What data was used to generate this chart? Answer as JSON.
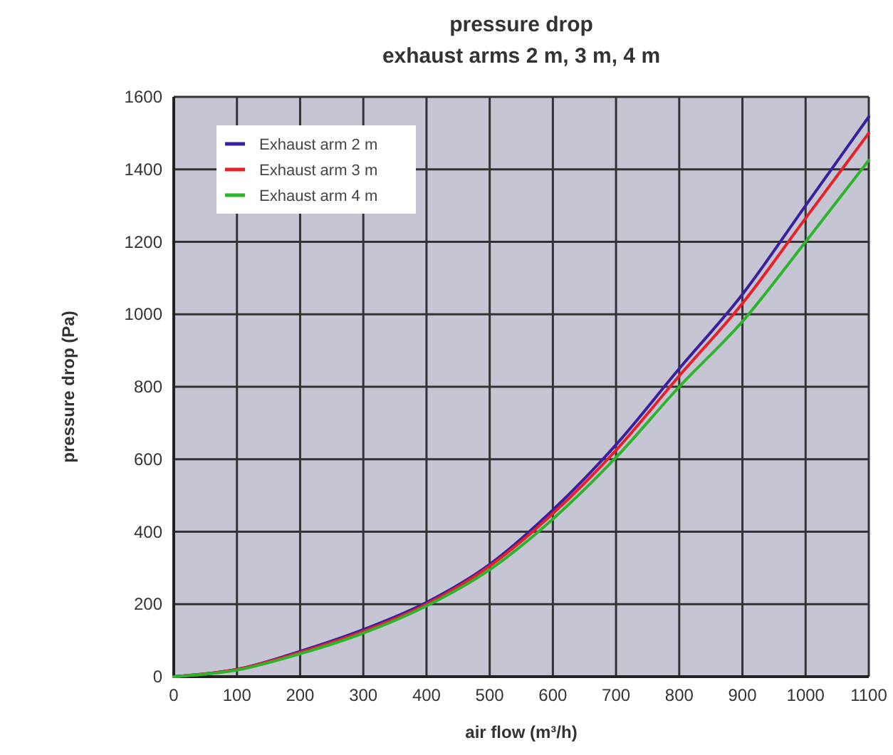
{
  "chart_data": {
    "type": "line",
    "title": "pressure drop",
    "subtitle": "exhaust arms 2 m, 3 m, 4 m",
    "xlabel": "air flow (m³/h)",
    "ylabel": "pressure drop (Pa)",
    "x": [
      0,
      100,
      200,
      300,
      400,
      500,
      600,
      700,
      800,
      900,
      1000,
      1100
    ],
    "series": [
      {
        "name": "Exhaust arm 2 m",
        "color": "#3a1fa0",
        "values": [
          0,
          20,
          70,
          130,
          205,
          310,
          460,
          640,
          850,
          1055,
          1300,
          1545
        ]
      },
      {
        "name": "Exhaust arm 3 m",
        "color": "#e8202a",
        "values": [
          0,
          20,
          67,
          125,
          200,
          305,
          450,
          625,
          830,
          1030,
          1265,
          1500
        ]
      },
      {
        "name": "Exhaust arm 4 m",
        "color": "#2cb52c",
        "values": [
          0,
          18,
          63,
          120,
          195,
          295,
          435,
          605,
          800,
          980,
          1200,
          1425
        ]
      }
    ],
    "xlim": [
      0,
      1100
    ],
    "xticks": [
      0,
      100,
      200,
      300,
      400,
      500,
      600,
      700,
      800,
      900,
      1000,
      1100
    ],
    "ylim": [
      0,
      1600
    ],
    "yticks": [
      0,
      200,
      400,
      600,
      800,
      1000,
      1200,
      1400,
      1600
    ],
    "grid": true,
    "legend": "top left",
    "marker": "none",
    "line_style": "solid"
  }
}
